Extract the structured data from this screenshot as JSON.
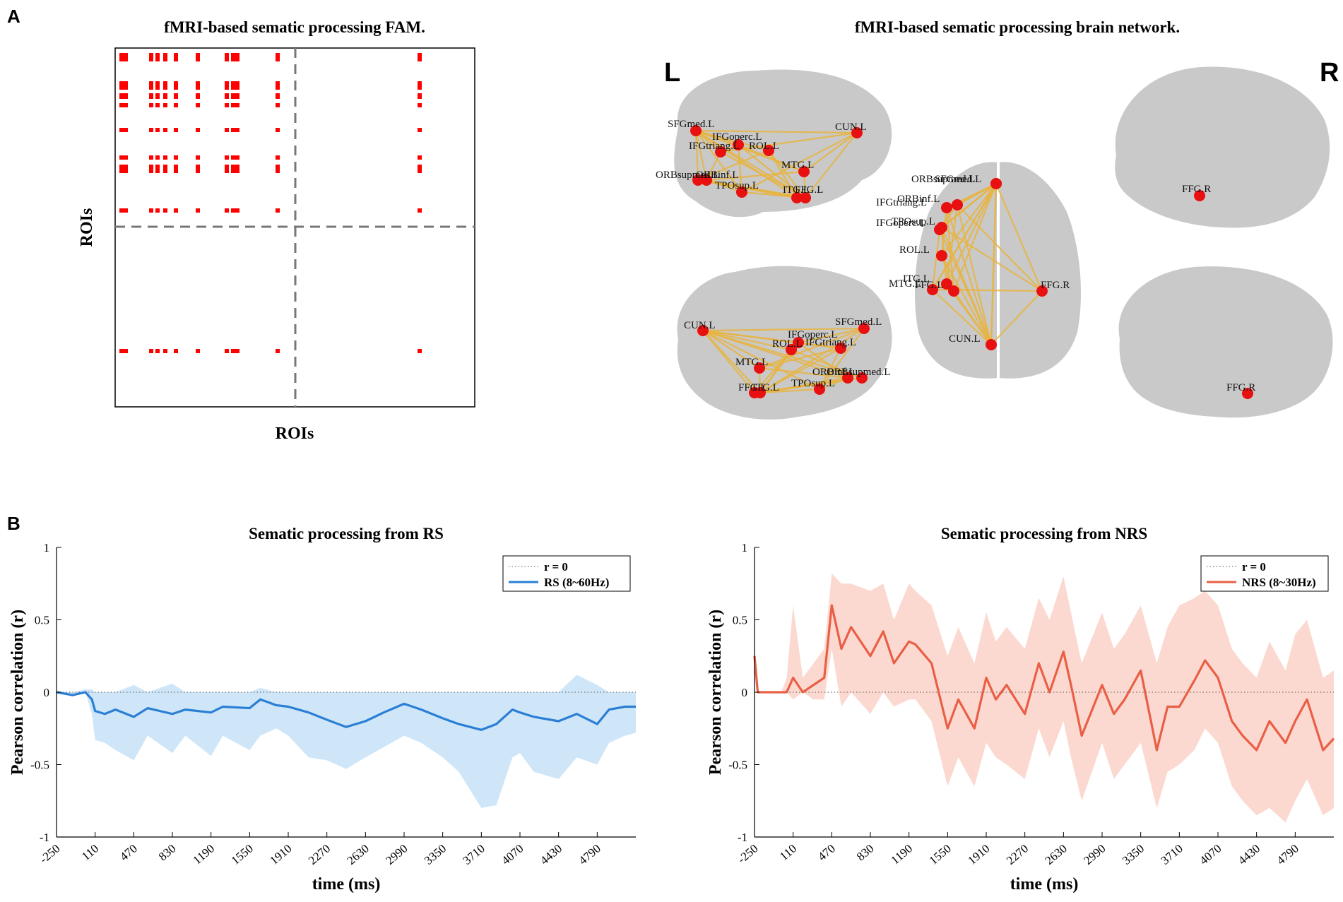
{
  "panels": {
    "a": "A",
    "b": "B"
  },
  "colors": {
    "fam": "#ff0000",
    "rs": "#2a7fd4",
    "rs_band": "#cfe6f9",
    "nrs": "#e95f45",
    "nrs_band": "#fcd9d0",
    "edge": "#e8b440",
    "node": "#e81010",
    "brain": "#c9c9c9"
  },
  "fam_panel": {
    "title": "fMRI-based sematic processing FAM.",
    "xlabel": "ROIs",
    "ylabel": "ROIs",
    "n_rois": 13
  },
  "network_panel": {
    "title": "fMRI-based sematic processing brain network.",
    "left_label": "L",
    "right_label": "R",
    "lateral_left": [
      "SFGmed.L",
      "IFGoperc.L",
      "IFGtriang.L",
      "ROL.L",
      "CUN.L",
      "MTG.L",
      "ORBsupmed.L",
      "ORBinf.L",
      "TPOsup.L",
      "ITG.L",
      "FFG.L"
    ],
    "medial_left": [
      "CUN.L",
      "SFGmed.L",
      "IFGoperc.L",
      "ROL.L",
      "IFGtriang.L",
      "MTG.L",
      "ORBsupmed.L",
      "ORBinf.L",
      "TPOsup.L",
      "FFG.L",
      "ITG.L"
    ],
    "axial": [
      "ORBsupmed.L",
      "SFGmed.L",
      "ORBinf.L",
      "IFGtriang.L",
      "IFGoperc.L",
      "TPOsup.L",
      "ROL.L",
      "ITG.L",
      "MTG.L",
      "FFG.L",
      "FFG.R",
      "CUN.L"
    ],
    "right_top": [
      "FFG.R"
    ],
    "right_bottom": [
      "FFG.R"
    ]
  },
  "chart_data": [
    {
      "type": "line",
      "title": "Sematic processing from RS",
      "xlabel": "time (ms)",
      "ylabel": "Pearson correlation (r)",
      "ylim": [
        -1,
        1
      ],
      "yticks": [
        -1,
        -0.5,
        0,
        0.5,
        1
      ],
      "xlim": [
        -250,
        5150
      ],
      "xticks": [
        -250,
        110,
        470,
        830,
        1190,
        1550,
        1910,
        2270,
        2630,
        2990,
        3350,
        3710,
        4070,
        4430,
        4790
      ],
      "legend": [
        "r = 0",
        "RS (8~60Hz)"
      ],
      "legend_position": "top-right",
      "series": [
        {
          "name": "RS (8~60Hz)",
          "x": [
            -250,
            -100,
            20,
            80,
            110,
            200,
            300,
            470,
            600,
            830,
            950,
            1190,
            1300,
            1550,
            1650,
            1800,
            1910,
            2100,
            2270,
            2450,
            2630,
            2800,
            2990,
            3150,
            3350,
            3500,
            3710,
            3850,
            4000,
            4070,
            4200,
            4430,
            4600,
            4790,
            4900,
            5050,
            5150
          ],
          "values": [
            0.0,
            -0.02,
            0.0,
            -0.05,
            -0.13,
            -0.15,
            -0.12,
            -0.17,
            -0.11,
            -0.15,
            -0.12,
            -0.14,
            -0.1,
            -0.11,
            -0.05,
            -0.09,
            -0.1,
            -0.14,
            -0.19,
            -0.24,
            -0.2,
            -0.14,
            -0.08,
            -0.12,
            -0.18,
            -0.22,
            -0.26,
            -0.22,
            -0.12,
            -0.14,
            -0.17,
            -0.2,
            -0.15,
            -0.22,
            -0.12,
            -0.1,
            -0.1
          ],
          "lower": [
            0.0,
            -0.03,
            0.0,
            -0.15,
            -0.33,
            -0.35,
            -0.4,
            -0.47,
            -0.3,
            -0.42,
            -0.3,
            -0.44,
            -0.3,
            -0.4,
            -0.3,
            -0.25,
            -0.3,
            -0.45,
            -0.47,
            -0.53,
            -0.45,
            -0.38,
            -0.3,
            -0.35,
            -0.45,
            -0.55,
            -0.8,
            -0.78,
            -0.45,
            -0.42,
            -0.55,
            -0.6,
            -0.45,
            -0.5,
            -0.35,
            -0.3,
            -0.28
          ],
          "upper": [
            0.0,
            0.0,
            0.02,
            0.02,
            0.0,
            0.0,
            0.0,
            0.05,
            0.0,
            0.06,
            0.0,
            0.0,
            0.0,
            0.0,
            0.03,
            0.0,
            0.0,
            0.0,
            0.0,
            0.0,
            0.0,
            0.0,
            0.0,
            0.0,
            0.0,
            0.0,
            0.0,
            0.0,
            0.0,
            0.0,
            0.0,
            0.0,
            0.12,
            0.05,
            0.0,
            0.0,
            0.0
          ]
        }
      ]
    },
    {
      "type": "line",
      "title": "Sematic processing from NRS",
      "xlabel": "time (ms)",
      "ylabel": "Pearson correlation (r)",
      "ylim": [
        -1,
        1
      ],
      "yticks": [
        -1,
        -0.5,
        0,
        0.5,
        1
      ],
      "xlim": [
        -250,
        5150
      ],
      "xticks": [
        -250,
        110,
        470,
        830,
        1190,
        1550,
        1910,
        2270,
        2630,
        2990,
        3350,
        3710,
        4070,
        4430,
        4790
      ],
      "legend": [
        "r = 0",
        "NRS (8~30Hz)"
      ],
      "legend_position": "top-right",
      "series": [
        {
          "name": "NRS (8~30Hz)",
          "x": [
            -250,
            -220,
            0,
            50,
            110,
            200,
            300,
            400,
            470,
            560,
            650,
            830,
            950,
            1050,
            1190,
            1250,
            1400,
            1550,
            1650,
            1800,
            1910,
            2000,
            2100,
            2270,
            2400,
            2500,
            2630,
            2700,
            2800,
            2990,
            3100,
            3200,
            3350,
            3500,
            3600,
            3710,
            3850,
            3950,
            4070,
            4200,
            4300,
            4430,
            4550,
            4700,
            4790,
            4900,
            5050,
            5150
          ],
          "values": [
            0.25,
            0.0,
            0.0,
            0.0,
            0.1,
            0.0,
            0.05,
            0.1,
            0.6,
            0.3,
            0.45,
            0.25,
            0.42,
            0.2,
            0.35,
            0.33,
            0.2,
            -0.25,
            -0.05,
            -0.25,
            0.1,
            -0.05,
            0.05,
            -0.15,
            0.2,
            0.0,
            0.28,
            0.05,
            -0.3,
            0.05,
            -0.15,
            -0.05,
            0.15,
            -0.4,
            -0.1,
            -0.1,
            0.08,
            0.22,
            0.1,
            -0.2,
            -0.3,
            -0.4,
            -0.2,
            -0.35,
            -0.2,
            -0.05,
            -0.4,
            -0.32
          ],
          "lower": [
            0.25,
            0.0,
            0.0,
            0.0,
            -0.05,
            0.0,
            -0.05,
            -0.05,
            0.3,
            -0.1,
            0.0,
            -0.15,
            0.0,
            -0.1,
            -0.05,
            -0.05,
            -0.2,
            -0.65,
            -0.45,
            -0.65,
            -0.35,
            -0.45,
            -0.5,
            -0.6,
            -0.25,
            -0.45,
            -0.2,
            -0.45,
            -0.75,
            -0.35,
            -0.6,
            -0.5,
            -0.35,
            -0.8,
            -0.55,
            -0.5,
            -0.4,
            -0.25,
            -0.35,
            -0.65,
            -0.75,
            -0.85,
            -0.8,
            -0.9,
            -0.75,
            -0.6,
            -0.85,
            -0.8
          ],
          "upper": [
            0.25,
            0.0,
            0.0,
            0.1,
            0.6,
            0.1,
            0.2,
            0.3,
            0.82,
            0.75,
            0.75,
            0.7,
            0.75,
            0.5,
            0.75,
            0.7,
            0.6,
            0.25,
            0.45,
            0.2,
            0.55,
            0.35,
            0.45,
            0.3,
            0.65,
            0.5,
            0.8,
            0.55,
            0.2,
            0.55,
            0.3,
            0.4,
            0.6,
            0.2,
            0.45,
            0.6,
            0.65,
            0.7,
            0.6,
            0.3,
            0.2,
            0.1,
            0.35,
            0.15,
            0.4,
            0.5,
            0.1,
            0.15
          ]
        }
      ]
    }
  ]
}
